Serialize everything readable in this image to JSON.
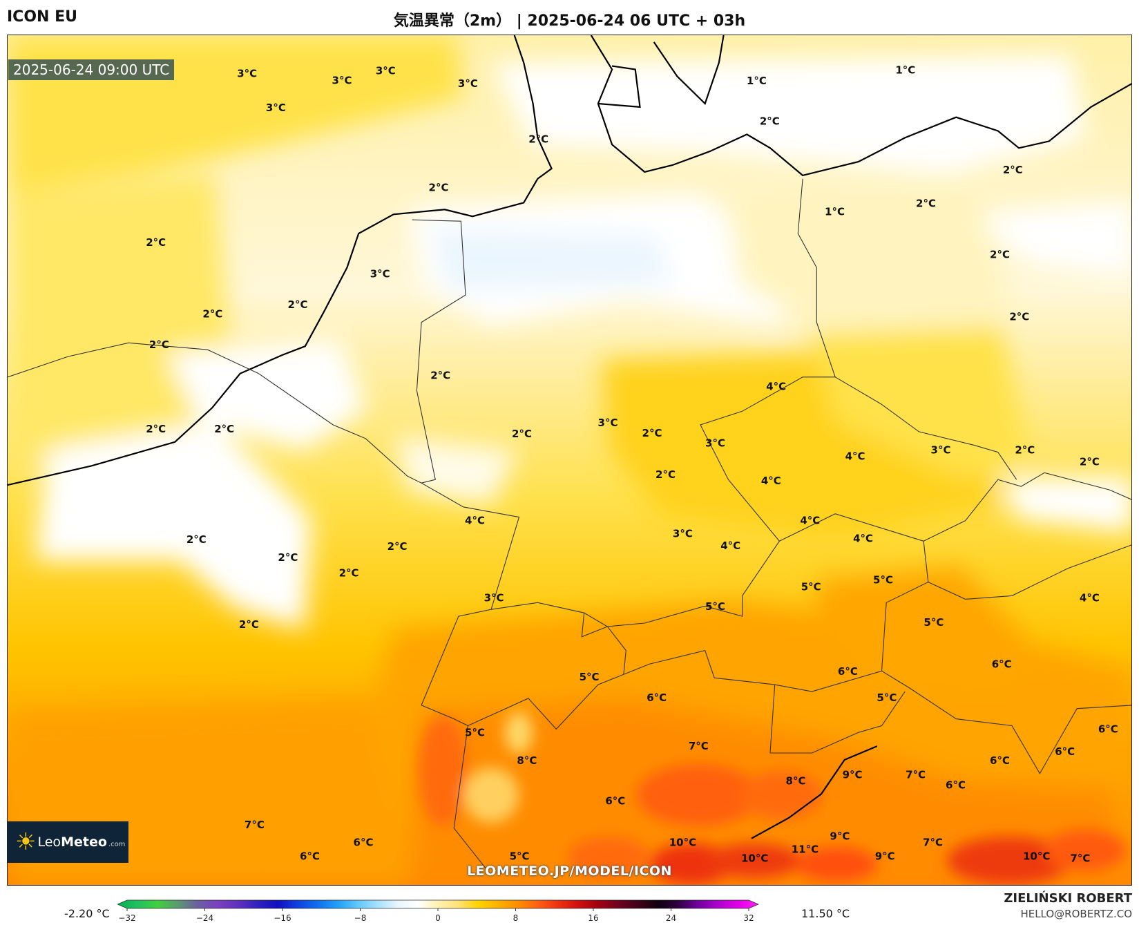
{
  "header": {
    "model": "ICON EU",
    "title": "気温異常（2m） | 2025-06-24 06 UTC + 03h"
  },
  "map": {
    "valid_time": "2025-06-24 09:00 UTC",
    "site": "LEOMETEO.JP/MODEL/ICON",
    "logo": {
      "brand_light": "Leo",
      "brand_bold": "Meteo",
      "suffix": ".com",
      "icon": "sun-icon"
    },
    "labels": [
      {
        "text": "3°C",
        "lon": 2.35,
        "lat": 55.39
      },
      {
        "text": "3°C",
        "lon": 4.39,
        "lat": 55.29
      },
      {
        "text": "3°C",
        "lon": 5.33,
        "lat": 55.43
      },
      {
        "text": "3°C",
        "lon": 7.1,
        "lat": 55.24
      },
      {
        "text": "3°C",
        "lon": 2.97,
        "lat": 54.89
      },
      {
        "text": "2°C",
        "lon": 8.62,
        "lat": 54.43
      },
      {
        "text": "1°C",
        "lon": 13.31,
        "lat": 55.28
      },
      {
        "text": "1°C",
        "lon": 16.51,
        "lat": 55.44
      },
      {
        "text": "2°C",
        "lon": 13.59,
        "lat": 54.69
      },
      {
        "text": "2°C",
        "lon": 6.47,
        "lat": 53.72
      },
      {
        "text": "2°C",
        "lon": 0.39,
        "lat": 52.92
      },
      {
        "text": "3°C",
        "lon": 5.21,
        "lat": 52.46
      },
      {
        "text": "2°C",
        "lon": 1.61,
        "lat": 51.87
      },
      {
        "text": "2°C",
        "lon": 3.44,
        "lat": 52.01
      },
      {
        "text": "2°C",
        "lon": 0.46,
        "lat": 51.42
      },
      {
        "text": "1°C",
        "lon": 14.99,
        "lat": 53.37
      },
      {
        "text": "2°C",
        "lon": 16.95,
        "lat": 53.49
      },
      {
        "text": "2°C",
        "lon": 18.82,
        "lat": 53.98
      },
      {
        "text": "2°C",
        "lon": 18.54,
        "lat": 52.74
      },
      {
        "text": "2°C",
        "lon": 18.96,
        "lat": 51.83
      },
      {
        "text": "2°C",
        "lon": 6.51,
        "lat": 50.97
      },
      {
        "text": "4°C",
        "lon": 13.73,
        "lat": 50.81
      },
      {
        "text": "2°C",
        "lon": 0.39,
        "lat": 50.19
      },
      {
        "text": "2°C",
        "lon": 1.86,
        "lat": 50.19
      },
      {
        "text": "2°C",
        "lon": 8.26,
        "lat": 50.12
      },
      {
        "text": "3°C",
        "lon": 10.11,
        "lat": 50.28
      },
      {
        "text": "2°C",
        "lon": 11.06,
        "lat": 50.13
      },
      {
        "text": "3°C",
        "lon": 12.42,
        "lat": 49.98
      },
      {
        "text": "4°C",
        "lon": 15.43,
        "lat": 49.79
      },
      {
        "text": "3°C",
        "lon": 17.27,
        "lat": 49.88
      },
      {
        "text": "2°C",
        "lon": 19.08,
        "lat": 49.88
      },
      {
        "text": "2°C",
        "lon": 20.47,
        "lat": 49.71
      },
      {
        "text": "2°C",
        "lon": 11.35,
        "lat": 49.52
      },
      {
        "text": "4°C",
        "lon": 13.62,
        "lat": 49.43
      },
      {
        "text": "4°C",
        "lon": 7.25,
        "lat": 48.85
      },
      {
        "text": "3°C",
        "lon": 11.72,
        "lat": 48.66
      },
      {
        "text": "4°C",
        "lon": 12.75,
        "lat": 48.48
      },
      {
        "text": "4°C",
        "lon": 14.46,
        "lat": 48.85
      },
      {
        "text": "4°C",
        "lon": 15.6,
        "lat": 48.59
      },
      {
        "text": "2°C",
        "lon": 1.26,
        "lat": 48.57
      },
      {
        "text": "2°C",
        "lon": 5.58,
        "lat": 48.47
      },
      {
        "text": "2°C",
        "lon": 3.23,
        "lat": 48.31
      },
      {
        "text": "2°C",
        "lon": 4.54,
        "lat": 48.08
      },
      {
        "text": "3°C",
        "lon": 7.66,
        "lat": 47.72
      },
      {
        "text": "5°C",
        "lon": 14.48,
        "lat": 47.88
      },
      {
        "text": "5°C",
        "lon": 12.42,
        "lat": 47.59
      },
      {
        "text": "5°C",
        "lon": 16.03,
        "lat": 47.98
      },
      {
        "text": "4°C",
        "lon": 20.47,
        "lat": 47.72
      },
      {
        "text": "5°C",
        "lon": 17.12,
        "lat": 47.36
      },
      {
        "text": "2°C",
        "lon": 2.39,
        "lat": 47.33
      },
      {
        "text": "6°C",
        "lon": 15.27,
        "lat": 46.64
      },
      {
        "text": "6°C",
        "lon": 18.58,
        "lat": 46.75
      },
      {
        "text": "5°C",
        "lon": 9.71,
        "lat": 46.56
      },
      {
        "text": "6°C",
        "lon": 11.16,
        "lat": 46.26
      },
      {
        "text": "5°C",
        "lon": 16.11,
        "lat": 46.26
      },
      {
        "text": "6°C",
        "lon": 20.87,
        "lat": 45.8
      },
      {
        "text": "5°C",
        "lon": 7.25,
        "lat": 45.75
      },
      {
        "text": "7°C",
        "lon": 12.06,
        "lat": 45.55
      },
      {
        "text": "6°C",
        "lon": 19.94,
        "lat": 45.47
      },
      {
        "text": "8°C",
        "lon": 8.37,
        "lat": 45.34
      },
      {
        "text": "6°C",
        "lon": 18.54,
        "lat": 45.34
      },
      {
        "text": "8°C",
        "lon": 14.15,
        "lat": 45.04
      },
      {
        "text": "9°C",
        "lon": 15.37,
        "lat": 45.13
      },
      {
        "text": "7°C",
        "lon": 16.73,
        "lat": 45.13
      },
      {
        "text": "6°C",
        "lon": 17.59,
        "lat": 44.98
      },
      {
        "text": "6°C",
        "lon": 10.27,
        "lat": 44.75
      },
      {
        "text": "7°C",
        "lon": 2.51,
        "lat": 44.4
      },
      {
        "text": "9°C",
        "lon": 15.1,
        "lat": 44.23
      },
      {
        "text": "6°C",
        "lon": 4.85,
        "lat": 44.14
      },
      {
        "text": "10°C",
        "lon": 11.72,
        "lat": 44.14
      },
      {
        "text": "7°C",
        "lon": 17.1,
        "lat": 44.14
      },
      {
        "text": "11°C",
        "lon": 14.35,
        "lat": 44.04
      },
      {
        "text": "10°C",
        "lon": 13.27,
        "lat": 43.91
      },
      {
        "text": "9°C",
        "lon": 16.07,
        "lat": 43.94
      },
      {
        "text": "6°C",
        "lon": 3.7,
        "lat": 43.94
      },
      {
        "text": "5°C",
        "lon": 8.21,
        "lat": 43.94
      },
      {
        "text": "10°C",
        "lon": 19.33,
        "lat": 43.94
      },
      {
        "text": "7°C",
        "lon": 20.27,
        "lat": 43.91
      }
    ]
  },
  "legend": {
    "min_label": "-2.20 °C",
    "max_label": "11.50 °C",
    "range": [
      -32,
      32
    ],
    "ticks": [
      "−32",
      "−24",
      "−16",
      "−8",
      "0",
      "8",
      "16",
      "24",
      "32"
    ],
    "colors": [
      "#00b050",
      "#20c060",
      "#40d040",
      "#5a9a70",
      "#6a60a0",
      "#7a40c0",
      "#6030c0",
      "#3020c0",
      "#1010c0",
      "#1040e0",
      "#1070f0",
      "#20a0f8",
      "#60c8fc",
      "#a8e0fc",
      "#e8f6fe",
      "#ffffff",
      "#fff2b0",
      "#ffe27a",
      "#ffd400",
      "#ffb000",
      "#ff8c00",
      "#ff6010",
      "#ee3010",
      "#d01010",
      "#a00010",
      "#700020",
      "#400018",
      "#100010",
      "#300040",
      "#7000a0",
      "#b000d0",
      "#e000e8",
      "#ff20f0"
    ]
  },
  "credits": {
    "author": "ZIELIŃSKI ROBERT",
    "email": "HELLO@ROBERTZ.CO"
  }
}
